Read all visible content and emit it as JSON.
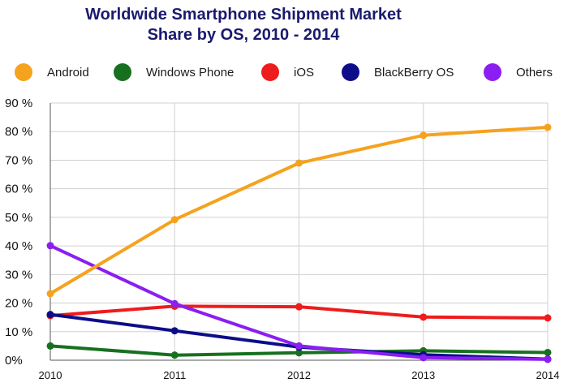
{
  "chart_data": {
    "type": "line",
    "title_line1": "Worldwide Smartphone Shipment Market",
    "title_line2": "Share by OS, 2010 - 2014",
    "xlabel": "",
    "ylabel": "",
    "categories": [
      "2010",
      "2011",
      "2012",
      "2013",
      "2014"
    ],
    "ylim": [
      0,
      90
    ],
    "yticks": [
      0,
      10,
      20,
      30,
      40,
      50,
      60,
      70,
      80,
      90
    ],
    "ytick_labels": [
      "0%",
      "10 %",
      "20 %",
      "30 %",
      "40 %",
      "50 %",
      "60 %",
      "70 %",
      "80 %",
      "90 %"
    ],
    "grid": "both",
    "legend_position": "top",
    "series": [
      {
        "name": "Android",
        "color": "#f5a21d",
        "values": [
          23.3,
          49.2,
          69.0,
          78.7,
          81.5
        ]
      },
      {
        "name": "Windows Phone",
        "color": "#17701f",
        "values": [
          5.0,
          1.8,
          2.6,
          3.3,
          2.7
        ]
      },
      {
        "name": "iOS",
        "color": "#ee1c1c",
        "values": [
          15.6,
          18.9,
          18.7,
          15.1,
          14.8
        ]
      },
      {
        "name": "BlackBerry OS",
        "color": "#0d0d8a",
        "values": [
          16.0,
          10.3,
          4.6,
          1.9,
          0.4
        ]
      },
      {
        "name": "Others",
        "color": "#8b1ef0",
        "values": [
          40.1,
          19.8,
          5.0,
          0.9,
          0.3
        ]
      }
    ]
  }
}
